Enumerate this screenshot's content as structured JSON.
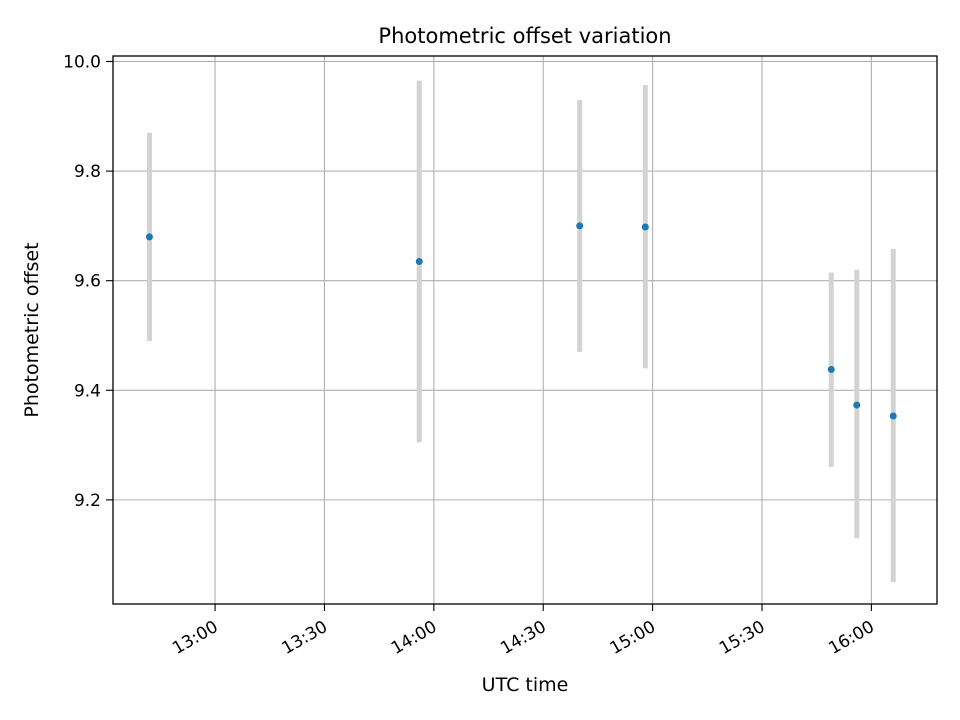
{
  "chart_data": {
    "type": "scatter",
    "title": "Photometric offset variation",
    "xlabel": "UTC time",
    "ylabel": "Photometric offset",
    "xlim": [
      "12:32",
      "16:18"
    ],
    "ylim": [
      9.01,
      10.01
    ],
    "x_ticks": [
      "13:00",
      "13:30",
      "14:00",
      "14:30",
      "15:00",
      "15:30",
      "16:00"
    ],
    "y_ticks": [
      9.2,
      9.4,
      9.6,
      9.8,
      10.0
    ],
    "grid": true,
    "points": [
      {
        "x": "12:42",
        "y": 9.68,
        "err_low": 9.49,
        "err_high": 9.87
      },
      {
        "x": "13:56",
        "y": 9.635,
        "err_low": 9.305,
        "err_high": 9.965
      },
      {
        "x": "14:40",
        "y": 9.7,
        "err_low": 9.47,
        "err_high": 9.93
      },
      {
        "x": "14:58",
        "y": 9.698,
        "err_low": 9.44,
        "err_high": 9.957
      },
      {
        "x": "15:49",
        "y": 9.438,
        "err_low": 9.26,
        "err_high": 9.615
      },
      {
        "x": "15:56",
        "y": 9.373,
        "err_low": 9.13,
        "err_high": 9.62
      },
      {
        "x": "16:06",
        "y": 9.353,
        "err_low": 9.05,
        "err_high": 9.658
      }
    ],
    "marker_color": "#1f77b4",
    "errorbar_color": "#d3d3d3"
  }
}
